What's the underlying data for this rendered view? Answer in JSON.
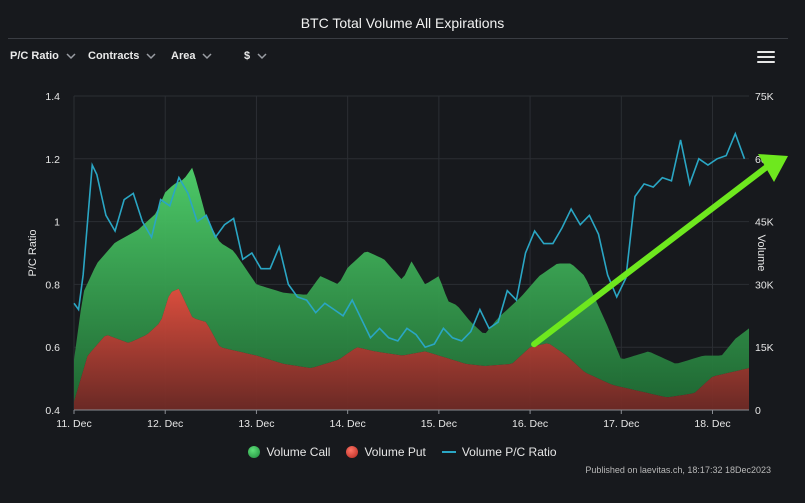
{
  "header": {
    "title": "BTC Total Volume All Expirations"
  },
  "toolbar": {
    "pc_ratio": "P/C Ratio",
    "contracts": "Contracts",
    "area": "Area",
    "currency": "$"
  },
  "menu": {
    "icon": "hamburger-icon"
  },
  "legend": {
    "call": "Volume Call",
    "put": "Volume Put",
    "ratio": "Volume P/C Ratio"
  },
  "credits": "Published on laevitas.ch, 18:17:32 18Dec2023",
  "colors": {
    "call": "#3fbf5f",
    "put": "#d9453a",
    "ratio_line": "#2aa6c4",
    "arrow": "#6ee81e",
    "grid": "#2b2e33",
    "background": "#17191d"
  },
  "chart_data": {
    "type": "area",
    "title": "BTC Total Volume All Expirations",
    "categories": [
      "11. Dec",
      "12. Dec",
      "13. Dec",
      "14. Dec",
      "15. Dec",
      "16. Dec",
      "17. Dec",
      "18. Dec"
    ],
    "x_unit": "day index (0 = 11. Dec)",
    "x_range": [
      0,
      7.4
    ],
    "left_axis": {
      "label": "P/C Ratio",
      "range": [
        0.4,
        1.4
      ],
      "ticks": [
        "0.4",
        "0.6",
        "0.8",
        "1",
        "1.2",
        "1.4"
      ],
      "tick_values": [
        0.4,
        0.6,
        0.8,
        1.0,
        1.2,
        1.4
      ]
    },
    "right_axis": {
      "label": "Volume",
      "range": [
        0,
        75000
      ],
      "ticks": [
        "0",
        "15K",
        "30K",
        "45K",
        "60K",
        "75K"
      ],
      "tick_values": [
        0,
        15000,
        30000,
        45000,
        60000,
        75000
      ]
    },
    "series": [
      {
        "name": "Volume Call",
        "kind": "stacked-area",
        "axis": "right",
        "x": [
          0,
          0.1,
          0.25,
          0.45,
          0.7,
          0.9,
          1.0,
          1.1,
          1.2,
          1.3,
          1.45,
          1.6,
          1.75,
          2.0,
          2.3,
          2.55,
          2.7,
          2.9,
          3.0,
          3.2,
          3.4,
          3.6,
          3.7,
          3.85,
          4.0,
          4.1,
          4.2,
          4.35,
          4.5,
          4.65,
          4.9,
          5.1,
          5.3,
          5.45,
          5.6,
          5.85,
          6.0,
          6.3,
          6.6,
          6.9,
          7.1,
          7.25,
          7.4
        ],
        "values": [
          12000,
          28000,
          35000,
          40000,
          43000,
          47000,
          52000,
          54000,
          55000,
          58000,
          46000,
          40000,
          38000,
          30000,
          28000,
          27500,
          32000,
          30000,
          34000,
          38000,
          36000,
          31000,
          35500,
          30000,
          32000,
          26000,
          25000,
          21000,
          18000,
          22000,
          27000,
          32000,
          35000,
          35000,
          32000,
          20000,
          12000,
          14000,
          11000,
          13000,
          13000,
          17000,
          19500
        ]
      },
      {
        "name": "Volume Put",
        "kind": "stacked-area",
        "axis": "right",
        "x": [
          0,
          0.15,
          0.35,
          0.6,
          0.8,
          0.95,
          1.05,
          1.15,
          1.3,
          1.45,
          1.6,
          1.8,
          2.0,
          2.3,
          2.6,
          2.9,
          3.1,
          3.3,
          3.6,
          3.85,
          4.0,
          4.3,
          4.5,
          4.8,
          5.0,
          5.2,
          5.4,
          5.6,
          5.9,
          6.2,
          6.5,
          6.8,
          7.0,
          7.2,
          7.4
        ],
        "values": [
          2000,
          13000,
          18000,
          16000,
          18000,
          21000,
          28000,
          29000,
          22000,
          21000,
          15000,
          14000,
          13000,
          11000,
          10000,
          12000,
          15000,
          14000,
          13000,
          14000,
          13000,
          11000,
          10500,
          11000,
          15000,
          16000,
          13000,
          9000,
          6000,
          4500,
          3000,
          4000,
          8000,
          9000,
          10000
        ]
      },
      {
        "name": "Volume P/C Ratio",
        "kind": "line",
        "axis": "left",
        "x": [
          0,
          0.05,
          0.1,
          0.2,
          0.25,
          0.35,
          0.45,
          0.55,
          0.65,
          0.75,
          0.85,
          0.95,
          1.05,
          1.15,
          1.25,
          1.35,
          1.45,
          1.55,
          1.65,
          1.75,
          1.85,
          1.95,
          2.05,
          2.15,
          2.25,
          2.35,
          2.45,
          2.55,
          2.65,
          2.75,
          2.85,
          2.95,
          3.05,
          3.15,
          3.25,
          3.35,
          3.45,
          3.55,
          3.65,
          3.75,
          3.85,
          3.95,
          4.05,
          4.15,
          4.25,
          4.35,
          4.45,
          4.55,
          4.65,
          4.75,
          4.85,
          4.95,
          5.05,
          5.15,
          5.25,
          5.35,
          5.45,
          5.55,
          5.65,
          5.75,
          5.85,
          5.95,
          6.05,
          6.15,
          6.25,
          6.35,
          6.45,
          6.55,
          6.65,
          6.75,
          6.85,
          6.95,
          7.05,
          7.15,
          7.25,
          7.35
        ],
        "values": [
          0.74,
          0.72,
          0.83,
          1.18,
          1.15,
          1.02,
          0.97,
          1.07,
          1.09,
          1.0,
          0.95,
          1.07,
          1.05,
          1.14,
          1.09,
          1.0,
          1.02,
          0.95,
          0.99,
          1.01,
          0.88,
          0.9,
          0.85,
          0.85,
          0.92,
          0.8,
          0.76,
          0.75,
          0.71,
          0.74,
          0.72,
          0.7,
          0.75,
          0.69,
          0.63,
          0.66,
          0.63,
          0.62,
          0.66,
          0.64,
          0.6,
          0.61,
          0.66,
          0.63,
          0.62,
          0.65,
          0.72,
          0.66,
          0.68,
          0.78,
          0.75,
          0.9,
          0.97,
          0.93,
          0.93,
          0.98,
          1.04,
          0.99,
          1.02,
          0.96,
          0.83,
          0.76,
          0.82,
          1.08,
          1.12,
          1.11,
          1.14,
          1.13,
          1.26,
          1.12,
          1.2,
          1.18,
          1.2,
          1.21,
          1.28,
          1.2
        ]
      }
    ],
    "annotations": [
      {
        "type": "arrow",
        "color": "green",
        "from": [
          5.0,
          0.6
        ],
        "to": [
          7.4,
          1.2
        ],
        "description": "upward trend arrow"
      }
    ]
  }
}
